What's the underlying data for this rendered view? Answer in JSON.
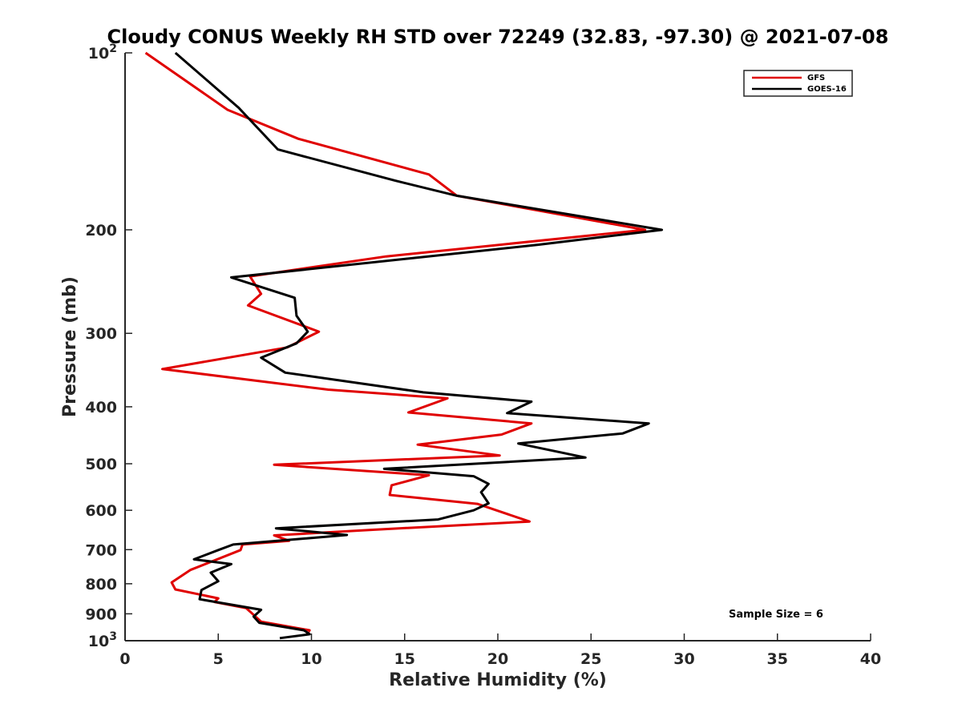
{
  "chart_data": {
    "type": "line",
    "title": "Cloudy CONUS Weekly RH STD over 72249 (32.83, -97.30) @ 2021-07-08",
    "xlabel": "Relative Humidity (%)",
    "ylabel": "Pressure (mb)",
    "xlim": [
      0,
      40
    ],
    "ylim": [
      100,
      1000
    ],
    "yscale": "log",
    "y_reversed": true,
    "grid": false,
    "legend_position": "top-right",
    "x_ticks": [
      "0",
      "5",
      "10",
      "15",
      "20",
      "25",
      "30",
      "35",
      "40"
    ],
    "y_ticks": [
      {
        "value": 100,
        "base": "10",
        "exp": "2"
      },
      {
        "value": 200,
        "label": "200"
      },
      {
        "value": 300,
        "label": "300"
      },
      {
        "value": 400,
        "label": "400"
      },
      {
        "value": 500,
        "label": "500"
      },
      {
        "value": 600,
        "label": "600"
      },
      {
        "value": 700,
        "label": "700"
      },
      {
        "value": 800,
        "label": "800"
      },
      {
        "value": 900,
        "label": "900"
      },
      {
        "value": 1000,
        "base": "10",
        "exp": "3"
      }
    ],
    "annotation": "Sample Size = 6",
    "series": [
      {
        "name": "GFS",
        "color": "#e00000",
        "points": [
          [
            1.1,
            100
          ],
          [
            5.5,
            125
          ],
          [
            9.3,
            140
          ],
          [
            16.3,
            161
          ],
          [
            17.8,
            175
          ],
          [
            27.9,
            200
          ],
          [
            14.0,
            222
          ],
          [
            6.7,
            240
          ],
          [
            7.3,
            257
          ],
          [
            6.6,
            269
          ],
          [
            10.4,
            298
          ],
          [
            8.7,
            317
          ],
          [
            2.0,
            345
          ],
          [
            10.9,
            374
          ],
          [
            17.3,
            387
          ],
          [
            15.2,
            409
          ],
          [
            21.8,
            427
          ],
          [
            20.2,
            446
          ],
          [
            15.7,
            464
          ],
          [
            20.1,
            484
          ],
          [
            8.0,
            502
          ],
          [
            16.3,
            523
          ],
          [
            14.3,
            544
          ],
          [
            14.2,
            565
          ],
          [
            18.9,
            585
          ],
          [
            21.7,
            627
          ],
          [
            13.1,
            648
          ],
          [
            8.0,
            662
          ],
          [
            8.8,
            676
          ],
          [
            6.3,
            686
          ],
          [
            6.2,
            701
          ],
          [
            3.5,
            758
          ],
          [
            2.5,
            796
          ],
          [
            2.7,
            818
          ],
          [
            5.0,
            847
          ],
          [
            4.8,
            859
          ],
          [
            6.5,
            880
          ],
          [
            7.3,
            928
          ],
          [
            9.9,
            960
          ],
          [
            9.8,
            970
          ]
        ]
      },
      {
        "name": "GOES-16",
        "color": "#000000",
        "points": [
          [
            2.7,
            100
          ],
          [
            6.1,
            124
          ],
          [
            8.2,
            146
          ],
          [
            14.5,
            165
          ],
          [
            17.8,
            175
          ],
          [
            28.8,
            200
          ],
          [
            22.2,
            212
          ],
          [
            5.7,
            241
          ],
          [
            9.1,
            261
          ],
          [
            9.2,
            280
          ],
          [
            9.8,
            298
          ],
          [
            9.2,
            312
          ],
          [
            7.3,
            330
          ],
          [
            8.6,
            350
          ],
          [
            16.0,
            378
          ],
          [
            21.8,
            392
          ],
          [
            20.5,
            410
          ],
          [
            28.1,
            427
          ],
          [
            26.7,
            444
          ],
          [
            21.1,
            462
          ],
          [
            24.7,
            488
          ],
          [
            13.9,
            510
          ],
          [
            18.7,
            525
          ],
          [
            19.5,
            541
          ],
          [
            19.1,
            559
          ],
          [
            19.5,
            584
          ],
          [
            18.7,
            600
          ],
          [
            16.8,
            622
          ],
          [
            8.1,
            644
          ],
          [
            11.9,
            661
          ],
          [
            5.8,
            686
          ],
          [
            5.0,
            701
          ],
          [
            3.7,
            727
          ],
          [
            5.7,
            741
          ],
          [
            4.6,
            766
          ],
          [
            5.0,
            792
          ],
          [
            4.1,
            820
          ],
          [
            4.0,
            850
          ],
          [
            7.3,
            886
          ],
          [
            6.9,
            910
          ],
          [
            7.2,
            932
          ],
          [
            9.6,
            960
          ],
          [
            9.9,
            975
          ],
          [
            8.3,
            990
          ]
        ]
      }
    ]
  }
}
